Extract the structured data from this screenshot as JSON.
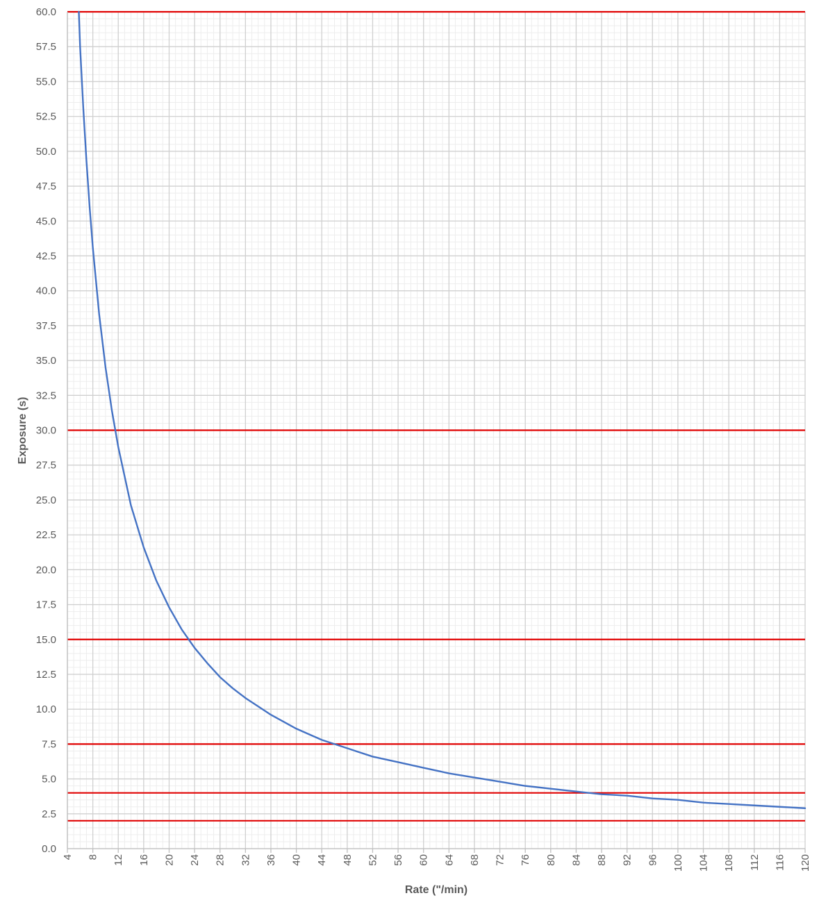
{
  "chart_data": {
    "type": "line",
    "title": "",
    "xlabel": "Rate (\"/min)",
    "ylabel": "Exposure (s)",
    "xlim": [
      4,
      120
    ],
    "ylim": [
      0,
      60
    ],
    "x_ticks": [
      "4",
      "8",
      "12",
      "16",
      "20",
      "24",
      "28",
      "32",
      "36",
      "40",
      "44",
      "48",
      "52",
      "56",
      "60",
      "64",
      "68",
      "72",
      "76",
      "80",
      "84",
      "88",
      "92",
      "96",
      "100",
      "104",
      "108",
      "112",
      "116",
      "120"
    ],
    "y_ticks": [
      "0.0",
      "2.5",
      "5.0",
      "7.5",
      "10.0",
      "12.5",
      "15.0",
      "17.5",
      "20.0",
      "22.5",
      "25.0",
      "27.5",
      "30.0",
      "32.5",
      "35.0",
      "37.5",
      "40.0",
      "42.5",
      "45.0",
      "47.5",
      "50.0",
      "52.5",
      "55.0",
      "57.5",
      "60.0"
    ],
    "x_minor_step": 1,
    "y_minor_step": 0.5,
    "grid": true,
    "series": [
      {
        "color": "#4472C4",
        "x": [
          5.8,
          6.0,
          6.5,
          7,
          7.5,
          8,
          9,
          10,
          11,
          12,
          14,
          16,
          18,
          20,
          22,
          24,
          26,
          28,
          30,
          32,
          36,
          40,
          44,
          48,
          52,
          56,
          60,
          64,
          68,
          72,
          76,
          80,
          84,
          88,
          92,
          96,
          100,
          104,
          108,
          112,
          116,
          120
        ],
        "y": [
          60.0,
          57.5,
          53.1,
          49.3,
          46.0,
          43.1,
          38.3,
          34.5,
          31.4,
          28.8,
          24.6,
          21.6,
          19.2,
          17.3,
          15.7,
          14.4,
          13.3,
          12.3,
          11.5,
          10.8,
          9.6,
          8.6,
          7.8,
          7.2,
          6.6,
          6.2,
          5.8,
          5.4,
          5.1,
          4.8,
          4.5,
          4.3,
          4.1,
          3.9,
          3.8,
          3.6,
          3.5,
          3.3,
          3.2,
          3.1,
          3.0,
          2.9
        ]
      }
    ],
    "reference_lines": [
      {
        "y": 60,
        "color": "#E00000"
      },
      {
        "y": 30,
        "color": "#E00000"
      },
      {
        "y": 15,
        "color": "#E00000"
      },
      {
        "y": 7.5,
        "color": "#E00000"
      },
      {
        "y": 4,
        "color": "#E00000"
      },
      {
        "y": 2,
        "color": "#E00000"
      }
    ],
    "colors": {
      "major_grid": "#D0D0D0",
      "minor_grid": "#EDEDED",
      "axis": "#BFBFBF"
    }
  }
}
